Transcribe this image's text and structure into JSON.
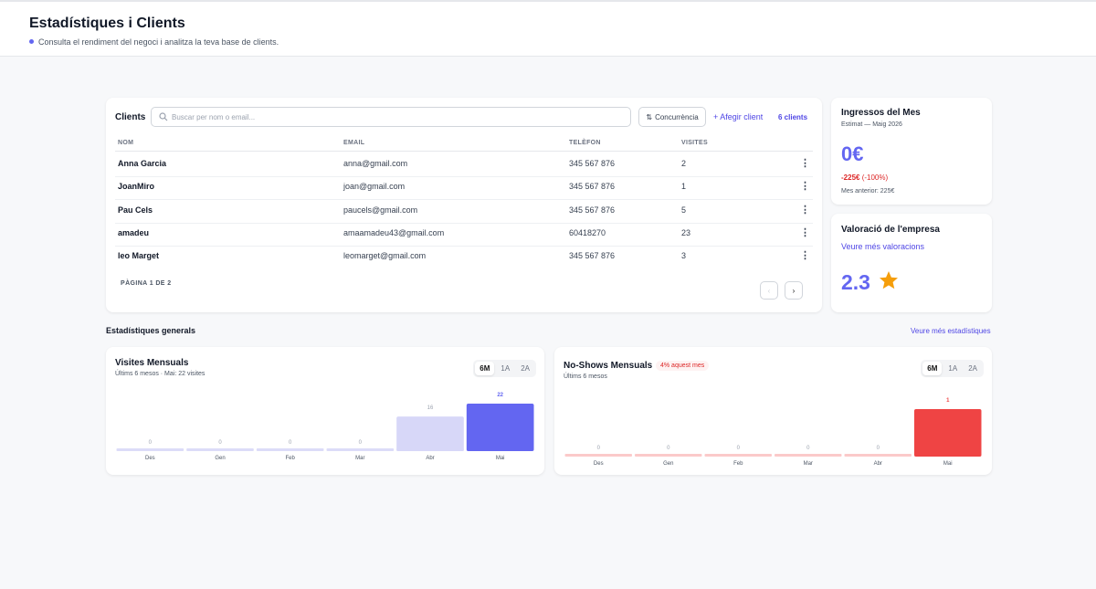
{
  "header": {
    "title": "Estadístiques i Clients",
    "subtitle": "Consulta el rendiment del negoci i analitza la teva base de clients."
  },
  "clients": {
    "title": "Clients",
    "search_placeholder": "Buscar per nom o email...",
    "sort_button": "Concurrència",
    "add_button": "+ Afegir client",
    "count": "6 clients",
    "columns": [
      "NOM",
      "EMAIL",
      "TELÈFON",
      "VISITES"
    ],
    "rows": [
      [
        "Anna Garcia",
        "anna@gmail.com",
        "345 567 876",
        2
      ],
      [
        "JoanMiro",
        "joan@gmail.com",
        "345 567 876",
        1
      ],
      [
        "Pau Cels",
        "paucels@gmail.com",
        "345 567 876",
        5
      ],
      [
        "amadeu",
        "amaamadeu43@gmail.com",
        "60418270",
        23
      ],
      [
        "leo Marget",
        "leomarget@gmail.com",
        "345 567 876",
        3
      ]
    ],
    "pagination": "PÀGINA 1 DE 2"
  },
  "income": {
    "title": "Ingressos del Mes",
    "subtitle": "Estimat — Maig 2026",
    "value": "0€",
    "change": "-225€",
    "change_pct": "(-100%)",
    "previous": "Mes anterior: 225€"
  },
  "rating": {
    "title": "Valoració de l'empresa",
    "link": "Veure més valoracions",
    "value": "2.3"
  },
  "stats": {
    "title": "Estadístiques generals",
    "link": "Veure més estadístiques"
  },
  "chart_data": [
    {
      "type": "bar",
      "title": "Visites Mensuals",
      "subtitle": "Últims 6 mesos · Mai: 22 visites",
      "ranges": [
        "6M",
        "1A",
        "2A"
      ],
      "categories": [
        "Des",
        "Gen",
        "Feb",
        "Mar",
        "Abr",
        "Mai"
      ],
      "values": [
        0,
        0,
        0,
        0,
        16,
        22
      ],
      "colors": [
        "#dcdcf8",
        "#dcdcf8",
        "#dcdcf8",
        "#dcdcf8",
        "#d7d7f8",
        "#6366f1"
      ]
    },
    {
      "type": "bar",
      "title": "No-Shows Mensuals",
      "badge": "4% aquest mes",
      "subtitle": "Últims 6 mesos",
      "ranges": [
        "6M",
        "1A",
        "2A"
      ],
      "categories": [
        "Des",
        "Gen",
        "Feb",
        "Mar",
        "Abr",
        "Mai"
      ],
      "values": [
        0,
        0,
        0,
        0,
        0,
        1
      ],
      "colors": [
        "#fbcaca",
        "#fbcaca",
        "#fbcaca",
        "#fbcaca",
        "#fbcaca",
        "#ef4444"
      ]
    }
  ]
}
